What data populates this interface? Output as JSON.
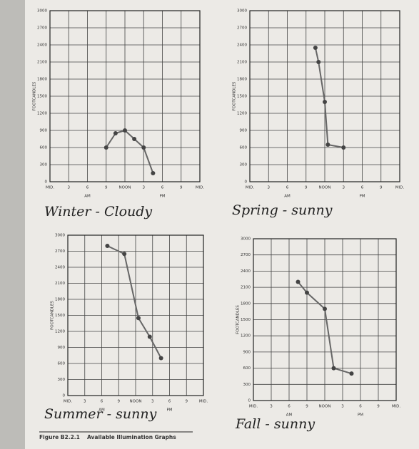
{
  "caption_number": "Figure B2.2.1",
  "caption_text": "Available Illumination Graphs",
  "chart_data": [
    {
      "type": "line",
      "title": "Winter - Cloudy",
      "ylabel": "FOOTCANDLES",
      "xlabels": [
        "AM",
        "PM"
      ],
      "x": [
        9,
        10.5,
        12,
        13.5,
        15,
        16.5
      ],
      "values": [
        600,
        850,
        900,
        750,
        600,
        150
      ],
      "color": "#666666",
      "xlim": [
        0,
        24
      ],
      "xticks": [
        {
          "value": 0,
          "label": "MID."
        },
        3,
        6,
        9,
        {
          "value": 12,
          "label": "NOON"
        },
        {
          "value": 15,
          "label": "3"
        },
        {
          "value": 18,
          "label": "6"
        },
        {
          "value": 21,
          "label": "9"
        },
        {
          "value": 24,
          "label": "MID."
        }
      ],
      "ylim": [
        0,
        3000
      ],
      "yticks": [
        0,
        300,
        600,
        900,
        1200,
        1500,
        1800,
        2100,
        2400,
        2700,
        3000
      ],
      "grid": true
    },
    {
      "type": "line",
      "title": "Spring - sunny",
      "ylabel": "FOOTCANDLES",
      "xlabels": [
        "AM",
        "PM"
      ],
      "x": [
        10.5,
        11,
        12,
        12.5,
        15
      ],
      "values": [
        2350,
        2100,
        1400,
        650,
        600
      ],
      "color": "#666666",
      "xlim": [
        0,
        24
      ],
      "xticks": [
        {
          "value": 0,
          "label": "MID."
        },
        3,
        6,
        9,
        {
          "value": 12,
          "label": "NOON"
        },
        {
          "value": 15,
          "label": "3"
        },
        {
          "value": 18,
          "label": "6"
        },
        {
          "value": 21,
          "label": "9"
        },
        {
          "value": 24,
          "label": "MID."
        }
      ],
      "ylim": [
        0,
        3000
      ],
      "yticks": [
        0,
        300,
        600,
        900,
        1200,
        1500,
        1800,
        2100,
        2400,
        2700,
        3000
      ],
      "grid": true
    },
    {
      "type": "line",
      "title": "Summer - sunny",
      "ylabel": "FOOTCANDLES",
      "xlabels": [
        "AM",
        "PM"
      ],
      "x": [
        7,
        10,
        12.5,
        14.5,
        16.5
      ],
      "values": [
        2800,
        2650,
        1450,
        1100,
        700
      ],
      "color": "#666666",
      "xlim": [
        0,
        24
      ],
      "xticks": [
        {
          "value": 0,
          "label": "MID."
        },
        3,
        6,
        9,
        {
          "value": 12,
          "label": "NOON"
        },
        {
          "value": 15,
          "label": "3"
        },
        {
          "value": 18,
          "label": "6"
        },
        {
          "value": 21,
          "label": "9"
        },
        {
          "value": 24,
          "label": "MID."
        }
      ],
      "ylim": [
        0,
        3000
      ],
      "yticks": [
        0,
        300,
        600,
        900,
        1200,
        1500,
        1800,
        2100,
        2400,
        2700,
        3000
      ],
      "grid": true
    },
    {
      "type": "line",
      "title": "Fall - sunny",
      "ylabel": "FOOTCANDLES",
      "xlabels": [
        "AM",
        "PM"
      ],
      "x": [
        7.5,
        9,
        12,
        13.5,
        16.5
      ],
      "values": [
        2200,
        2000,
        1700,
        600,
        500
      ],
      "color": "#666666",
      "xlim": [
        0,
        24
      ],
      "xticks": [
        {
          "value": 0,
          "label": "MID."
        },
        3,
        6,
        9,
        {
          "value": 12,
          "label": "NOON"
        },
        {
          "value": 15,
          "label": "3"
        },
        {
          "value": 18,
          "label": "6"
        },
        {
          "value": 21,
          "label": "9"
        },
        {
          "value": 24,
          "label": "MID."
        }
      ],
      "ylim": [
        0,
        3000
      ],
      "yticks": [
        0,
        300,
        600,
        900,
        1200,
        1500,
        1800,
        2100,
        2400,
        2700,
        3000
      ],
      "grid": true
    }
  ]
}
